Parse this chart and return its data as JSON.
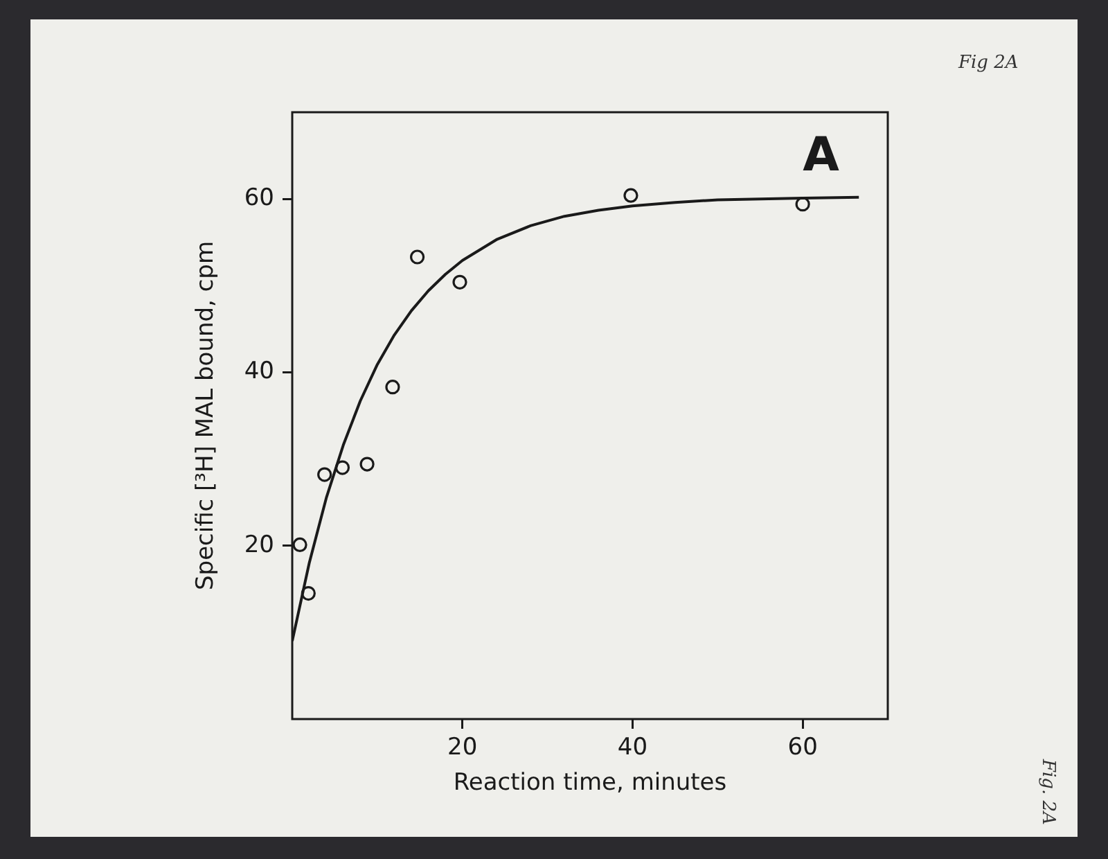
{
  "chart_data": {
    "type": "scatter",
    "xlabel": "Reaction time, minutes",
    "ylabel": "Specific [³H] MAL bound, cpm",
    "annotations": [
      "A",
      "Fig 2A",
      "Fig. 2A"
    ],
    "xlim": [
      0,
      70
    ],
    "xticks": [
      20,
      40,
      60
    ],
    "ylim": [
      0,
      70
    ],
    "yticks": [
      20,
      40,
      60
    ],
    "grid": false,
    "legend": false,
    "series": [
      {
        "type": "scatter",
        "color": "#1a1a1a",
        "marker": "circle",
        "x": [
          0.9,
          1.9,
          3.8,
          5.9,
          8.8,
          11.8,
          14.7,
          19.7,
          39.8,
          60.0
        ],
        "values": [
          20.1,
          14.5,
          28.2,
          29.0,
          29.4,
          38.3,
          53.3,
          50.4,
          60.4,
          59.4
        ]
      },
      {
        "type": "line",
        "color": "#1a1a1a",
        "marker": "none",
        "line_style": "solid",
        "x": [
          0,
          2,
          4,
          6,
          8,
          10,
          12,
          14,
          16,
          18,
          20,
          24,
          28,
          32,
          36,
          40,
          45,
          50,
          55,
          60,
          66.6
        ],
        "values": [
          9.0,
          18.0,
          25.5,
          31.6,
          36.7,
          40.9,
          44.3,
          47.1,
          49.4,
          51.3,
          52.9,
          55.3,
          56.9,
          58.0,
          58.7,
          59.2,
          59.6,
          59.9,
          60.0,
          60.1,
          60.2
        ]
      }
    ]
  }
}
